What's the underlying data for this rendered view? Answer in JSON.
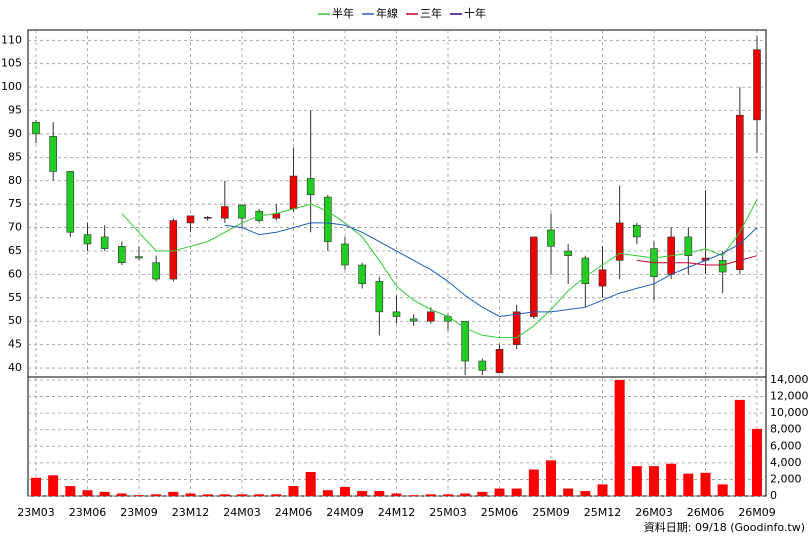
{
  "chart_data": {
    "type": "candlestick",
    "categories": [
      "23M03",
      null,
      null,
      "23M06",
      null,
      null,
      "23M09",
      null,
      null,
      "23M12",
      null,
      null,
      "24M03",
      null,
      null,
      "24M06",
      null,
      null,
      "24M09",
      null,
      null,
      "24M12",
      null,
      null,
      "25M03",
      null,
      null,
      "25M06",
      null,
      null,
      "25M09",
      null,
      null,
      "25M12",
      null,
      null,
      "26M03",
      null,
      null,
      "26M06",
      null,
      null,
      "26M09"
    ],
    "open": [
      92.5,
      89.5,
      82,
      68.5,
      68,
      66,
      63.8,
      62.5,
      59,
      71,
      72,
      72,
      74.8,
      73.5,
      72,
      74,
      80.5,
      76.5,
      66.5,
      62,
      58.5,
      52,
      50.5,
      50,
      51,
      50,
      41.5,
      39,
      45,
      51,
      69.5,
      65,
      63.5,
      57.5,
      63,
      70.5,
      65.5,
      60,
      68,
      63,
      63,
      61,
      93
    ],
    "high": [
      93,
      92.5,
      82,
      71,
      70.5,
      67,
      66,
      64,
      72,
      72.5,
      72.5,
      80,
      75,
      74,
      75,
      87,
      95,
      77,
      68,
      62.5,
      59.5,
      55.5,
      51.5,
      53,
      51.5,
      50,
      42,
      45,
      53.5,
      68,
      73,
      66.5,
      64,
      66,
      79,
      71,
      67,
      70,
      70,
      78,
      65,
      100,
      111
    ],
    "low": [
      88,
      80,
      68,
      65,
      65,
      62,
      63,
      58.5,
      58.5,
      69,
      71.5,
      71,
      70,
      71,
      71.5,
      73.5,
      69,
      65,
      61,
      57,
      47,
      49.5,
      49,
      49.5,
      48,
      38.5,
      38.5,
      39,
      44,
      50.5,
      60,
      58,
      53,
      55,
      59,
      66.5,
      54.5,
      59,
      60,
      60,
      56,
      60,
      86
    ],
    "close": [
      90,
      82,
      69,
      66.5,
      65.5,
      62.5,
      63.5,
      59,
      71.5,
      72.5,
      72.2,
      74.5,
      72,
      71.5,
      73,
      81,
      77,
      67,
      62,
      58,
      52,
      51,
      50,
      52,
      50,
      41.5,
      39.5,
      44,
      52,
      68,
      66,
      64,
      58,
      61,
      71,
      68,
      59.5,
      68,
      64,
      63.5,
      60.5,
      94,
      108
    ],
    "up_color": "#ee0000",
    "down_color": "#22cc22",
    "ylim": [
      38.3,
      112.2
    ],
    "yticks": [
      40,
      45,
      50,
      55,
      60,
      65,
      70,
      75,
      80,
      85,
      90,
      95,
      100,
      105,
      110
    ],
    "grid": true,
    "series": [
      {
        "name": "半年",
        "color": "#33cc33",
        "values": [
          null,
          null,
          null,
          null,
          null,
          73,
          69,
          65,
          65,
          66,
          67,
          69,
          71,
          72.5,
          73,
          74,
          75,
          73.5,
          71,
          68,
          63,
          57.5,
          54.5,
          52.5,
          51,
          48.5,
          47,
          46.5,
          46.5,
          49,
          52.5,
          56.5,
          59.5,
          62,
          64.5,
          64,
          63.5,
          64,
          64.5,
          65.5,
          64,
          69,
          76
        ]
      },
      {
        "name": "年線",
        "color": "#1f5fbf",
        "values": [
          null,
          null,
          null,
          null,
          null,
          null,
          null,
          null,
          null,
          null,
          null,
          70.5,
          70,
          68.5,
          69,
          70,
          71,
          71,
          70.5,
          69,
          67,
          65,
          63,
          61,
          58.5,
          55.5,
          53,
          51,
          51.5,
          52,
          52,
          52.5,
          53,
          54.5,
          56,
          57,
          58,
          60,
          61.5,
          63,
          64.5,
          66.5,
          70
        ]
      },
      {
        "name": "三年",
        "color": "#cc0033",
        "values": [
          null,
          null,
          null,
          null,
          null,
          null,
          null,
          null,
          null,
          null,
          null,
          null,
          null,
          null,
          null,
          null,
          null,
          null,
          null,
          null,
          null,
          null,
          null,
          null,
          null,
          null,
          null,
          null,
          null,
          null,
          null,
          null,
          null,
          null,
          null,
          63,
          62.5,
          62.5,
          62.5,
          62,
          62,
          63,
          64
        ]
      },
      {
        "name": "十年",
        "color": "#330099",
        "values": [
          null,
          null,
          null,
          null,
          null,
          null,
          null,
          null,
          null,
          null,
          null,
          null,
          null,
          null,
          null,
          null,
          null,
          null,
          null,
          null,
          null,
          null,
          null,
          null,
          null,
          null,
          null,
          null,
          null,
          null,
          null,
          null,
          null,
          null,
          null,
          null,
          null,
          null,
          null,
          null,
          null,
          null,
          null
        ]
      }
    ],
    "volume": {
      "color": "#ff0000",
      "values": [
        2200,
        2500,
        1200,
        700,
        500,
        300,
        100,
        200,
        500,
        300,
        200,
        200,
        200,
        200,
        200,
        1200,
        2900,
        700,
        1100,
        600,
        600,
        300,
        100,
        200,
        200,
        300,
        500,
        900,
        900,
        3200,
        4300,
        900,
        600,
        1400,
        14000,
        3600,
        3600,
        3900,
        2700,
        2800,
        1400,
        11600,
        8100
      ],
      "ylim": [
        0,
        14000
      ],
      "yticks": [
        0,
        {
          "value": 2000,
          "label": "2,000"
        },
        {
          "value": 4000,
          "label": "4,000"
        },
        {
          "value": 6000,
          "label": "6,000"
        },
        {
          "value": 8000,
          "label": "8,000"
        },
        {
          "value": 10000,
          "label": "10,000"
        },
        {
          "value": 12000,
          "label": "12,000"
        },
        {
          "value": 14000,
          "label": "14,000"
        }
      ]
    },
    "source": "資料日期: 09/18 (Goodinfo.tw)"
  }
}
